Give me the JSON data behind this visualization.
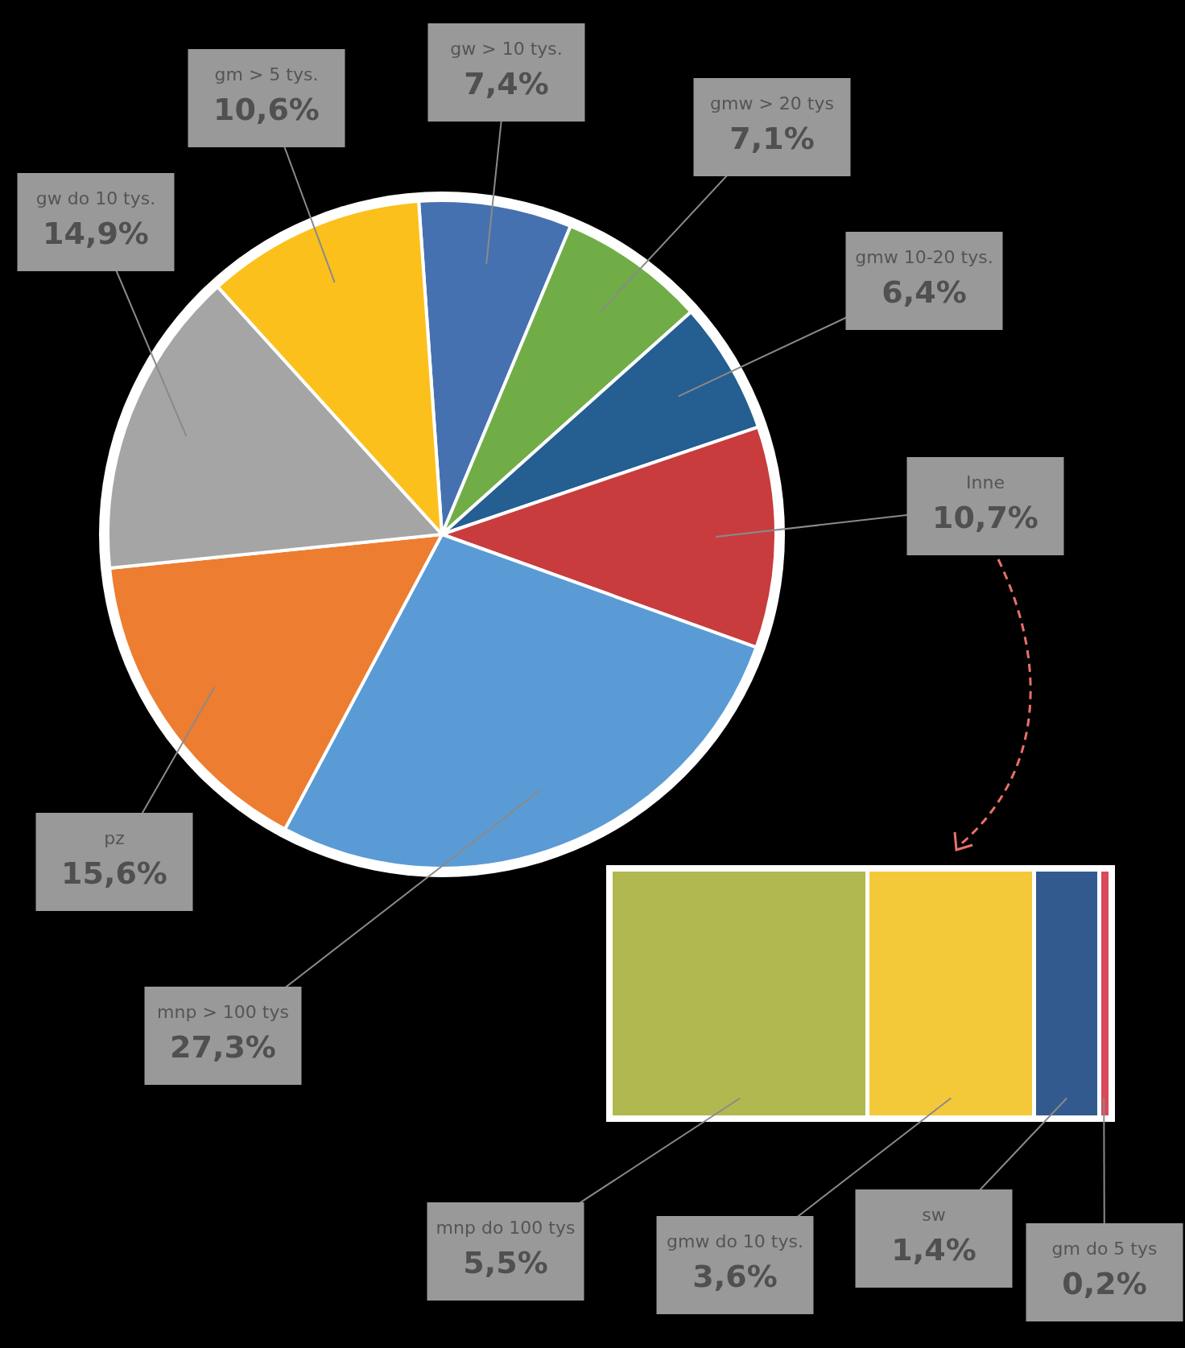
{
  "chart_data": [
    {
      "type": "pie",
      "categories": [
        "gw > 10 tys.",
        "gmw > 20 tys",
        "gmw 10-20 tys.",
        "Inne",
        "mnp > 100 tys",
        "pz",
        "gw do 10 tys.",
        "gm > 5 tys."
      ],
      "values": [
        7.4,
        7.1,
        6.4,
        10.7,
        27.3,
        15.6,
        14.9,
        10.6
      ],
      "colors": [
        "#4671b0",
        "#70ad47",
        "#255e91",
        "#c83c3e",
        "#5b9bd5",
        "#ed7d31",
        "#a5a5a5",
        "#fcc01d"
      ],
      "value_labels": [
        "7,4%",
        "7,1%",
        "6,4%",
        "10,7%",
        "27,3%",
        "15,6%",
        "14,9%",
        "10,6%"
      ]
    },
    {
      "type": "bar",
      "orientation": "horizontal",
      "stacked": true,
      "categories": [
        null
      ],
      "series": [
        {
          "name": "mnp do 100 tys",
          "color": "#b1b84f",
          "values": [
            5.5
          ],
          "value_labels": [
            "5,5%"
          ]
        },
        {
          "name": "gmw do 10 tys.",
          "color": "#f4c939",
          "values": [
            3.6
          ],
          "value_labels": [
            "3,6%"
          ]
        },
        {
          "name": "sw",
          "color": "#335a8e",
          "values": [
            1.4
          ],
          "value_labels": [
            "1,4%"
          ]
        },
        {
          "name": "gm do 5 tys",
          "color": "#d9495a",
          "values": [
            0.2
          ],
          "value_labels": [
            "0,2%"
          ]
        }
      ]
    }
  ]
}
